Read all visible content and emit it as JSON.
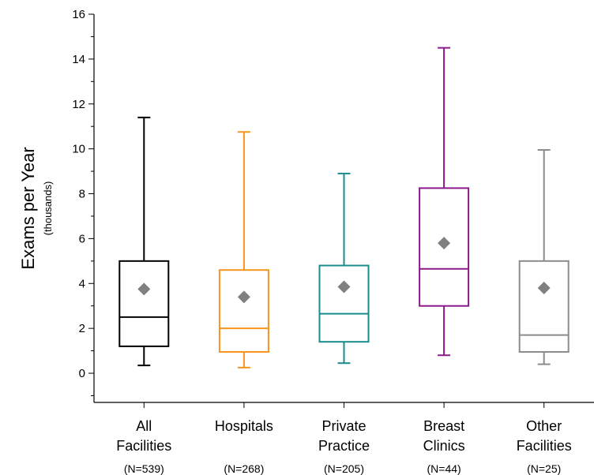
{
  "chart_data": {
    "type": "box",
    "ylabel": "Exams per Year",
    "ylabel_sub": "(thousands)",
    "ylim": [
      -1.3,
      16
    ],
    "yticks": [
      "0",
      "2",
      "4",
      "6",
      "8",
      "10",
      "12",
      "14",
      "16"
    ],
    "mean_marker": "diamond",
    "mean_color": "#808080",
    "grid": false,
    "categories": [
      {
        "lines": [
          "All",
          "Facilities"
        ],
        "n": "(N=539)",
        "color": "#000000",
        "whisker_low": 0.35,
        "q1": 1.2,
        "median": 2.5,
        "q3": 5.0,
        "whisker_high": 11.4,
        "mean": 3.75
      },
      {
        "lines": [
          "Hospitals"
        ],
        "n": "(N=268)",
        "color": "#F7941D",
        "whisker_low": 0.25,
        "q1": 0.95,
        "median": 2.0,
        "q3": 4.6,
        "whisker_high": 10.75,
        "mean": 3.4
      },
      {
        "lines": [
          "Private",
          "Practice"
        ],
        "n": "(N=205)",
        "color": "#1A8C8C",
        "whisker_low": 0.45,
        "q1": 1.4,
        "median": 2.65,
        "q3": 4.8,
        "whisker_high": 8.9,
        "mean": 3.85
      },
      {
        "lines": [
          "Breast",
          "Clinics"
        ],
        "n": "(N=44)",
        "color": "#8B1A8B",
        "whisker_low": 0.8,
        "q1": 3.0,
        "median": 4.65,
        "q3": 8.25,
        "whisker_high": 14.5,
        "mean": 5.8
      },
      {
        "lines": [
          "Other",
          "Facilities"
        ],
        "n": "(N=25)",
        "color": "#8C8C8C",
        "whisker_low": 0.4,
        "q1": 0.95,
        "median": 1.7,
        "q3": 5.0,
        "whisker_high": 9.95,
        "mean": 3.8
      }
    ]
  }
}
